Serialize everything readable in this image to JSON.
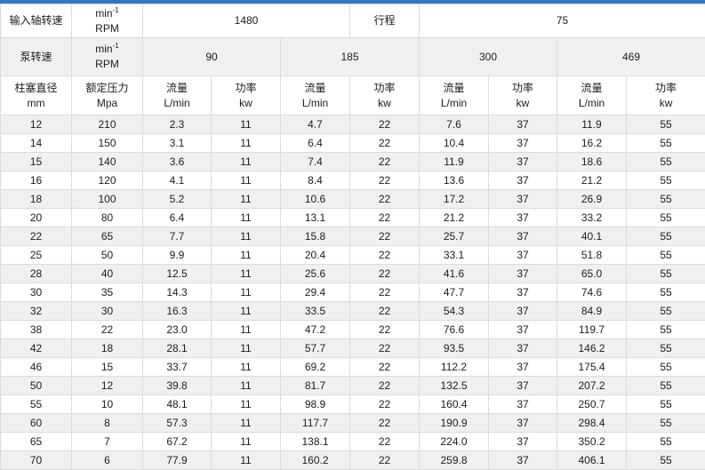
{
  "accent_color": "#2f76c4",
  "colors": {
    "stripe": "#f0f0f0",
    "border": "#dbdbdb",
    "text": "#1c1c1c"
  },
  "unit": {
    "base": "min",
    "sup": "-1",
    "line2": "RPM"
  },
  "top_row": {
    "input_speed_label": "输入轴转速",
    "input_speed_value": "1480",
    "stroke_label": "行程",
    "stroke_value": "75"
  },
  "pump_row": {
    "label": "泵转速",
    "speeds": [
      "90",
      "185",
      "300",
      "469"
    ]
  },
  "columns": {
    "diameter_line1": "柱塞直径",
    "diameter_line2": "mm",
    "pressure_line1": "额定压力",
    "pressure_line2": "Mpa",
    "flow_line1": "流量",
    "flow_line2": "L/min",
    "power_line1": "功率",
    "power_line2": "kw"
  },
  "rows": [
    [
      "12",
      "210",
      "2.3",
      "11",
      "4.7",
      "22",
      "7.6",
      "37",
      "11.9",
      "55"
    ],
    [
      "14",
      "150",
      "3.1",
      "11",
      "6.4",
      "22",
      "10.4",
      "37",
      "16.2",
      "55"
    ],
    [
      "15",
      "140",
      "3.6",
      "11",
      "7.4",
      "22",
      "11.9",
      "37",
      "18.6",
      "55"
    ],
    [
      "16",
      "120",
      "4.1",
      "11",
      "8.4",
      "22",
      "13.6",
      "37",
      "21.2",
      "55"
    ],
    [
      "18",
      "100",
      "5.2",
      "11",
      "10.6",
      "22",
      "17.2",
      "37",
      "26.9",
      "55"
    ],
    [
      "20",
      "80",
      "6.4",
      "11",
      "13.1",
      "22",
      "21.2",
      "37",
      "33.2",
      "55"
    ],
    [
      "22",
      "65",
      "7.7",
      "11",
      "15.8",
      "22",
      "25.7",
      "37",
      "40.1",
      "55"
    ],
    [
      "25",
      "50",
      "9.9",
      "11",
      "20.4",
      "22",
      "33.1",
      "37",
      "51.8",
      "55"
    ],
    [
      "28",
      "40",
      "12.5",
      "11",
      "25.6",
      "22",
      "41.6",
      "37",
      "65.0",
      "55"
    ],
    [
      "30",
      "35",
      "14.3",
      "11",
      "29.4",
      "22",
      "47.7",
      "37",
      "74.6",
      "55"
    ],
    [
      "32",
      "30",
      "16.3",
      "11",
      "33.5",
      "22",
      "54.3",
      "37",
      "84.9",
      "55"
    ],
    [
      "38",
      "22",
      "23.0",
      "11",
      "47.2",
      "22",
      "76.6",
      "37",
      "119.7",
      "55"
    ],
    [
      "42",
      "18",
      "28.1",
      "11",
      "57.7",
      "22",
      "93.5",
      "37",
      "146.2",
      "55"
    ],
    [
      "46",
      "15",
      "33.7",
      "11",
      "69.2",
      "22",
      "112.2",
      "37",
      "175.4",
      "55"
    ],
    [
      "50",
      "12",
      "39.8",
      "11",
      "81.7",
      "22",
      "132.5",
      "37",
      "207.2",
      "55"
    ],
    [
      "55",
      "10",
      "48.1",
      "11",
      "98.9",
      "22",
      "160.4",
      "37",
      "250.7",
      "55"
    ],
    [
      "60",
      "8",
      "57.3",
      "11",
      "117.7",
      "22",
      "190.9",
      "37",
      "298.4",
      "55"
    ],
    [
      "65",
      "7",
      "67.2",
      "11",
      "138.1",
      "22",
      "224.0",
      "37",
      "350.2",
      "55"
    ],
    [
      "70",
      "6",
      "77.9",
      "11",
      "160.2",
      "22",
      "259.8",
      "37",
      "406.1",
      "55"
    ]
  ]
}
